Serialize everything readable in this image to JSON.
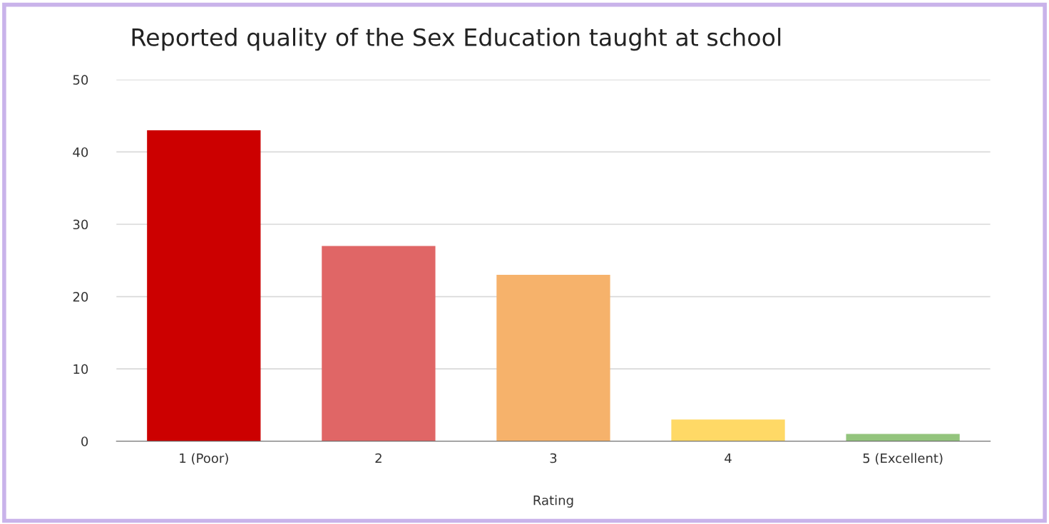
{
  "chart_data": {
    "type": "bar",
    "title": "Reported quality of the Sex Education taught at school",
    "xlabel": "Rating",
    "categories": [
      "1 (Poor)",
      "2",
      "3",
      "4",
      "5 (Excellent)"
    ],
    "values": [
      43,
      27,
      23,
      3,
      1
    ],
    "colors": [
      "#cc0000",
      "#e06666",
      "#f6b26b",
      "#ffd966",
      "#93c47d"
    ],
    "ylim": [
      0,
      50
    ],
    "yticks": [
      0,
      10,
      20,
      30,
      40,
      50
    ],
    "grid": "y",
    "legend": false
  }
}
